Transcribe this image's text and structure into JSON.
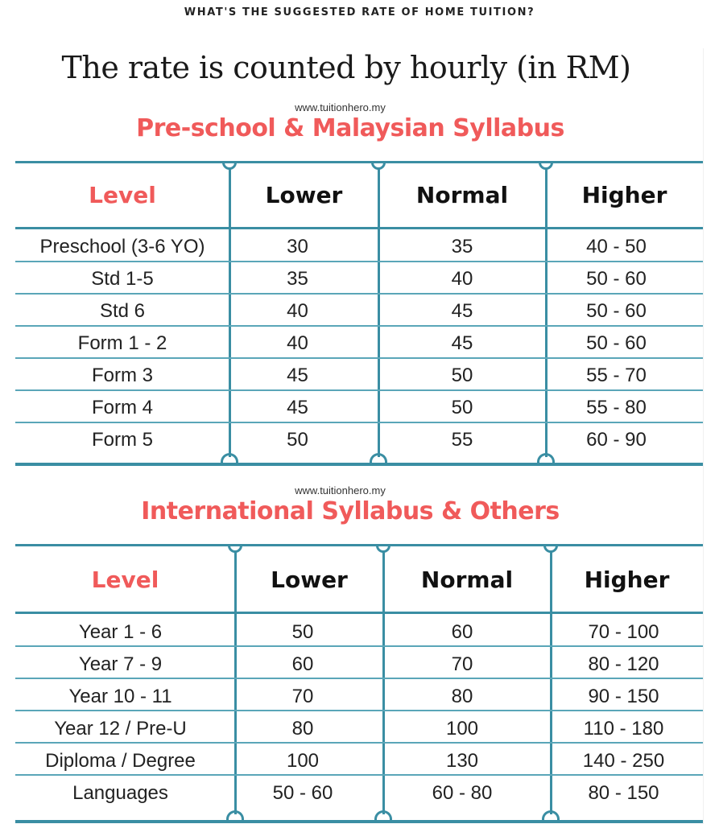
{
  "page": {
    "kicker": "WHAT'S THE SUGGESTED RATE OF HOME TUITION?",
    "main_title": "The rate is counted by hourly (in RM)",
    "accent_color": "#f05a5a",
    "line_color": "#3a8ea3"
  },
  "tables": [
    {
      "website": "www.tuitionhero.my",
      "title": "Pre-school & Malaysian Syllabus",
      "headers": [
        "Level",
        "Lower",
        "Normal",
        "Higher"
      ],
      "rows": [
        [
          "Preschool (3-6 YO)",
          "30",
          "35",
          "40 - 50"
        ],
        [
          "Std 1-5",
          "35",
          "40",
          "50 - 60"
        ],
        [
          "Std 6",
          "40",
          "45",
          "50 - 60"
        ],
        [
          "Form 1 - 2",
          "40",
          "45",
          "50 - 60"
        ],
        [
          "Form 3",
          "45",
          "50",
          "55 - 70"
        ],
        [
          "Form 4",
          "45",
          "50",
          "55 - 80"
        ],
        [
          "Form 5",
          "50",
          "55",
          "60 - 90"
        ]
      ]
    },
    {
      "website": "www.tuitionhero.my",
      "title": "International Syllabus & Others",
      "headers": [
        "Level",
        "Lower",
        "Normal",
        "Higher"
      ],
      "rows": [
        [
          "Year 1 - 6",
          "50",
          "60",
          "70 - 100"
        ],
        [
          "Year 7 - 9",
          "60",
          "70",
          "80 - 120"
        ],
        [
          "Year 10 - 11",
          "70",
          "80",
          "90 - 150"
        ],
        [
          "Year 12 / Pre-U",
          "80",
          "100",
          "110 - 180"
        ],
        [
          "Diploma / Degree",
          "100",
          "130",
          "140 - 250"
        ],
        [
          "Languages",
          "50 - 60",
          "60 - 80",
          "80 - 150"
        ]
      ]
    }
  ]
}
